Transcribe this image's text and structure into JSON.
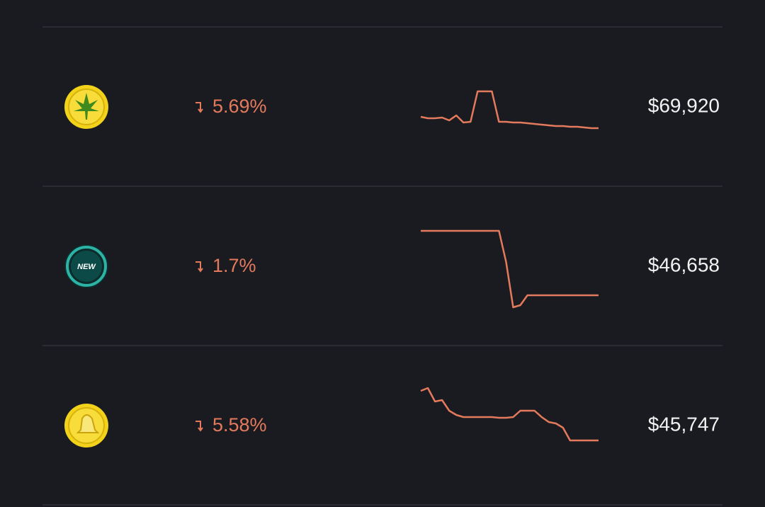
{
  "rows": [
    {
      "change": "5.69%",
      "price": "$69,920",
      "sparkline": [
        35,
        33,
        33,
        34,
        30,
        37,
        27,
        28,
        71,
        71,
        71,
        28,
        28,
        27,
        27,
        26,
        25,
        24,
        23,
        22,
        22,
        21,
        21,
        20,
        19,
        19
      ]
    },
    {
      "icon_label": "NEW",
      "change": "1.7%",
      "price": "$46,658",
      "sparkline": [
        99,
        99,
        99,
        99,
        99,
        99,
        99,
        99,
        99,
        99,
        99,
        99,
        55,
        -9,
        -6,
        8,
        8,
        8,
        8,
        8,
        8,
        8,
        8,
        8,
        8,
        8
      ]
    },
    {
      "change": "5.58%",
      "price": "$45,747",
      "sparkline": [
        98,
        102,
        83,
        85,
        70,
        64,
        61,
        61,
        61,
        61,
        61,
        60,
        60,
        61,
        70,
        70,
        70,
        61,
        54,
        52,
        46,
        28,
        28,
        28,
        28,
        28
      ]
    }
  ]
}
